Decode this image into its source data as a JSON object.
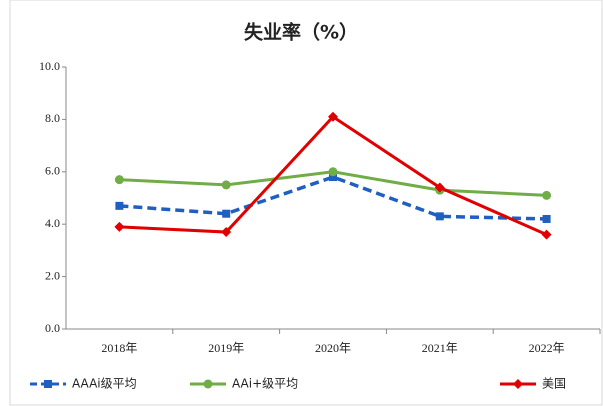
{
  "chart_data": {
    "type": "line",
    "title": "失业率（%）",
    "categories": [
      "2018年",
      "2019年",
      "2020年",
      "2021年",
      "2022年"
    ],
    "series": [
      {
        "name": "AAAi级平均",
        "color": "#1f5fbf",
        "values": [
          4.7,
          4.4,
          5.8,
          4.3,
          4.2
        ]
      },
      {
        "name": "AAi+级平均",
        "color": "#70ad47",
        "values": [
          5.7,
          5.5,
          6.0,
          5.3,
          5.1
        ]
      },
      {
        "name": "美国",
        "color": "#e00000",
        "values": [
          3.9,
          3.7,
          8.1,
          5.4,
          3.6
        ]
      }
    ],
    "ylim": [
      0,
      10
    ],
    "yticks": [
      {
        "value": 0,
        "label": "0.0"
      },
      {
        "value": 2,
        "label": "2.0"
      },
      {
        "value": 4,
        "label": "4.0"
      },
      {
        "value": 6,
        "label": "6.0"
      },
      {
        "value": 8,
        "label": "8.0"
      },
      {
        "value": 10,
        "label": "10.0"
      }
    ],
    "grid": false,
    "legend": "bottom"
  }
}
